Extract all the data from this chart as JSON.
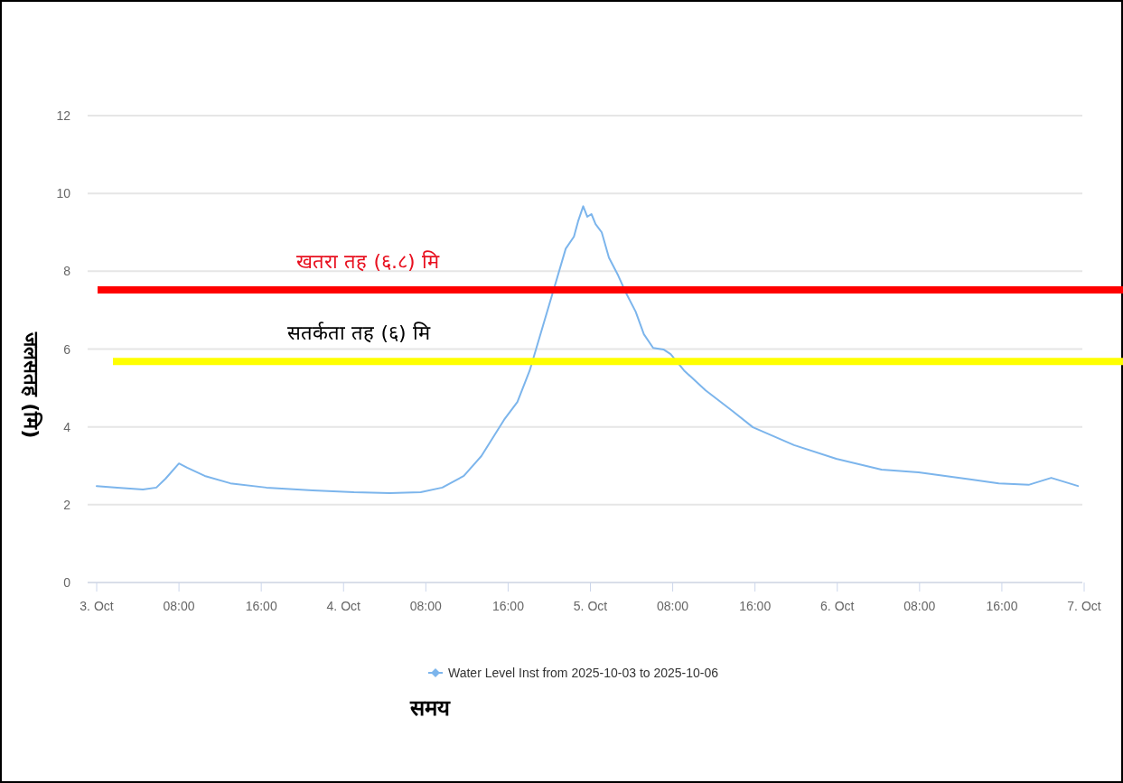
{
  "chart_data": {
    "type": "line",
    "xlabel": "समय",
    "ylabel": "जलसतह (मि)",
    "legend": "bottom",
    "grid": "y",
    "xlim": [
      "2025-10-03T00:00",
      "2025-10-07T00:00"
    ],
    "ylim": [
      0,
      12
    ],
    "yticks": [
      0,
      2,
      4,
      6,
      8,
      10,
      12
    ],
    "xticks": [
      {
        "value": "2025-10-03T00:00",
        "label": "3. Oct"
      },
      {
        "value": "2025-10-03T08:00",
        "label": "08:00"
      },
      {
        "value": "2025-10-03T16:00",
        "label": "16:00"
      },
      {
        "value": "2025-10-04T00:00",
        "label": "4. Oct"
      },
      {
        "value": "2025-10-04T08:00",
        "label": "08:00"
      },
      {
        "value": "2025-10-04T16:00",
        "label": "16:00"
      },
      {
        "value": "2025-10-05T00:00",
        "label": "5. Oct"
      },
      {
        "value": "2025-10-05T08:00",
        "label": "08:00"
      },
      {
        "value": "2025-10-05T16:00",
        "label": "16:00"
      },
      {
        "value": "2025-10-06T00:00",
        "label": "6. Oct"
      },
      {
        "value": "2025-10-06T08:00",
        "label": "08:00"
      },
      {
        "value": "2025-10-06T16:00",
        "label": "16:00"
      },
      {
        "value": "2025-10-07T00:00",
        "label": "7. Oct"
      }
    ],
    "ref_lines": [
      {
        "axis": "y",
        "value": 7.52,
        "label": "खतरा तह (६.८) मि",
        "color": "#ff0000"
      },
      {
        "axis": "y",
        "value": 5.68,
        "label": "सतर्कता तह (६) मि",
        "color": "#ffff00"
      }
    ],
    "series": [
      {
        "name": "Water Level Inst from 2025-10-03 to 2025-10-06",
        "color": "#7cb5ec",
        "x": [
          "2025-10-03T00:00",
          "2025-10-03T02:00",
          "2025-10-03T04:30",
          "2025-10-03T05:48",
          "2025-10-03T06:42",
          "2025-10-03T08:00",
          "2025-10-03T08:48",
          "2025-10-03T10:30",
          "2025-10-03T13:00",
          "2025-10-03T16:30",
          "2025-10-03T21:00",
          "2025-10-04T01:00",
          "2025-10-04T04:30",
          "2025-10-04T07:30",
          "2025-10-04T09:36",
          "2025-10-04T11:42",
          "2025-10-04T13:24",
          "2025-10-04T15:36",
          "2025-10-04T16:54",
          "2025-10-04T18:06",
          "2025-10-04T19:24",
          "2025-10-04T20:42",
          "2025-10-04T21:36",
          "2025-10-04T22:24",
          "2025-10-04T22:48",
          "2025-10-04T23:18",
          "2025-10-04T23:42",
          "2025-10-05T00:06",
          "2025-10-05T00:30",
          "2025-10-05T01:06",
          "2025-10-05T01:48",
          "2025-10-05T02:42",
          "2025-10-05T03:30",
          "2025-10-05T04:24",
          "2025-10-05T05:12",
          "2025-10-05T06:06",
          "2025-10-05T07:06",
          "2025-10-05T07:48",
          "2025-10-05T09:06",
          "2025-10-05T11:12",
          "2025-10-05T13:48",
          "2025-10-05T15:48",
          "2025-10-05T19:48",
          "2025-10-05T23:54",
          "2025-10-06T04:18",
          "2025-10-06T07:54",
          "2025-10-06T12:54",
          "2025-10-06T15:42",
          "2025-10-06T18:36",
          "2025-10-06T20:48",
          "2025-10-06T23:24"
        ],
        "values": [
          2.48,
          2.44,
          2.39,
          2.44,
          2.67,
          3.06,
          2.95,
          2.74,
          2.55,
          2.44,
          2.37,
          2.32,
          2.3,
          2.32,
          2.44,
          2.74,
          3.25,
          4.18,
          4.64,
          5.45,
          6.61,
          7.77,
          8.58,
          8.89,
          9.28,
          9.67,
          9.4,
          9.47,
          9.21,
          9.0,
          8.35,
          7.89,
          7.42,
          6.96,
          6.38,
          6.03,
          5.99,
          5.87,
          5.45,
          4.94,
          4.41,
          3.99,
          3.53,
          3.18,
          2.9,
          2.83,
          2.65,
          2.55,
          2.51,
          2.69,
          2.48
        ]
      }
    ]
  }
}
